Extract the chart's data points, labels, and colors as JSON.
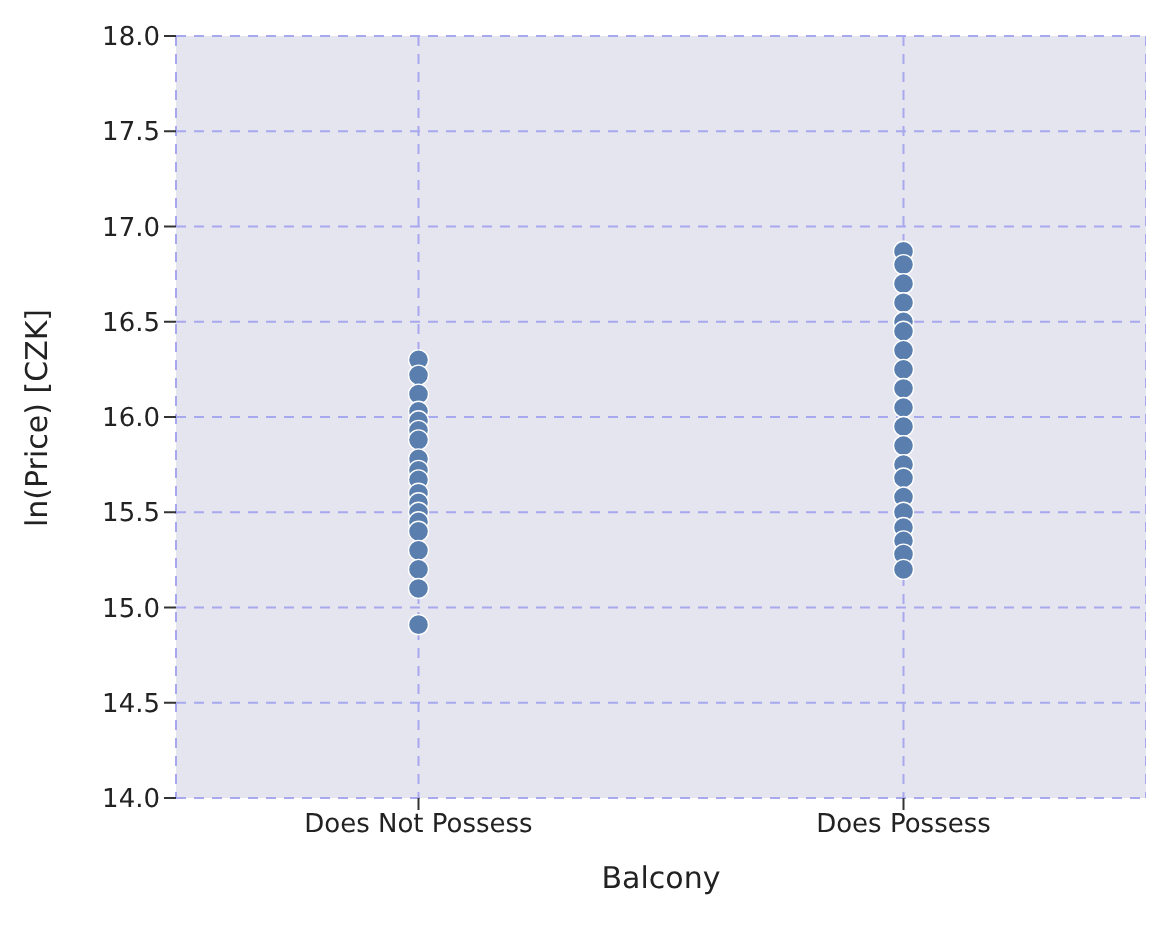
{
  "chart_data": {
    "type": "scatter",
    "xlabel": "Balcony",
    "ylabel": "ln(Price) [CZK]",
    "categories": [
      "Does Not Possess",
      "Does Possess"
    ],
    "ylim": [
      14.0,
      18.0
    ],
    "yticks": [
      {
        "value": 14.0,
        "label": "14.0"
      },
      {
        "value": 14.5,
        "label": "14.5"
      },
      {
        "value": 15.0,
        "label": "15.0"
      },
      {
        "value": 15.5,
        "label": "15.5"
      },
      {
        "value": 16.0,
        "label": "16.0"
      },
      {
        "value": 16.5,
        "label": "16.5"
      },
      {
        "value": 17.0,
        "label": "17.0"
      },
      {
        "value": 17.5,
        "label": "17.5"
      },
      {
        "value": 18.0,
        "label": "18.0"
      }
    ],
    "grid": true,
    "marker": "circle",
    "series": [
      {
        "color": "#5a7fae",
        "x": [
          "Does Not Possess",
          "Does Not Possess",
          "Does Not Possess",
          "Does Not Possess",
          "Does Not Possess",
          "Does Not Possess",
          "Does Not Possess",
          "Does Not Possess",
          "Does Not Possess",
          "Does Not Possess",
          "Does Not Possess",
          "Does Not Possess",
          "Does Not Possess",
          "Does Not Possess",
          "Does Not Possess",
          "Does Not Possess",
          "Does Not Possess",
          "Does Not Possess",
          "Does Not Possess"
        ],
        "values": [
          16.3,
          16.22,
          16.12,
          16.03,
          15.98,
          15.93,
          15.88,
          15.78,
          15.72,
          15.67,
          15.6,
          15.55,
          15.5,
          15.45,
          15.4,
          15.3,
          15.2,
          15.1,
          14.91
        ]
      },
      {
        "color": "#5a7fae",
        "x": [
          "Does Possess",
          "Does Possess",
          "Does Possess",
          "Does Possess",
          "Does Possess",
          "Does Possess",
          "Does Possess",
          "Does Possess",
          "Does Possess",
          "Does Possess",
          "Does Possess",
          "Does Possess",
          "Does Possess",
          "Does Possess",
          "Does Possess",
          "Does Possess",
          "Does Possess",
          "Does Possess",
          "Does Possess",
          "Does Possess"
        ],
        "values": [
          16.87,
          16.8,
          16.7,
          16.6,
          16.5,
          16.45,
          16.35,
          16.25,
          16.15,
          16.05,
          15.95,
          15.85,
          15.75,
          15.68,
          15.58,
          15.5,
          15.42,
          15.35,
          15.28,
          15.2
        ]
      }
    ]
  }
}
